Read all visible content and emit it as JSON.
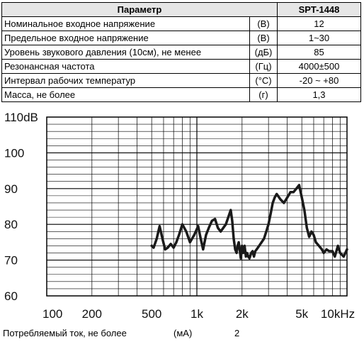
{
  "table": {
    "headers": [
      "Параметр",
      "SPT-1448"
    ],
    "rows": [
      {
        "param": "Номинальное входное напряжение",
        "unit": "(В)",
        "value": "12"
      },
      {
        "param": "Предельное входное напряжение",
        "unit": "(В)",
        "value": "1~30"
      },
      {
        "param": "Уровень звукового давления (10см), не менее",
        "unit": "(дБ)",
        "value": "85"
      },
      {
        "param": "Резонансная частота",
        "unit": "(Гц)",
        "value": "4000±500"
      },
      {
        "param": "Интервал рабочих температур",
        "unit": "(°С)",
        "value": "-20 ~ +80"
      },
      {
        "param": "Масса, не более",
        "unit": "(г)",
        "value": "1,3"
      }
    ]
  },
  "chart_data": {
    "type": "line",
    "x_scale": "log",
    "xlim": [
      100,
      10000
    ],
    "ylim": [
      60,
      110
    ],
    "x_tick_labels": [
      {
        "x": 100,
        "label": "100"
      },
      {
        "x": 200,
        "label": "200"
      },
      {
        "x": 500,
        "label": "500"
      },
      {
        "x": 1000,
        "label": "1k"
      },
      {
        "x": 2000,
        "label": "2k"
      },
      {
        "x": 5000,
        "label": "5k"
      },
      {
        "x": 10000,
        "label": "10kHz"
      }
    ],
    "y_tick_labels": [
      {
        "y": 60,
        "label": "60"
      },
      {
        "y": 70,
        "label": "70"
      },
      {
        "y": 80,
        "label": "80"
      },
      {
        "y": 90,
        "label": "90"
      },
      {
        "y": 100,
        "label": "100"
      },
      {
        "y": 110,
        "label": "110dB"
      }
    ],
    "grid": true,
    "series": [
      {
        "color": "#1a1a1a",
        "x": [
          500,
          515,
          540,
          565,
          590,
          615,
          640,
          670,
          700,
          730,
          760,
          800,
          850,
          900,
          960,
          1020,
          1060,
          1100,
          1150,
          1200,
          1260,
          1320,
          1380,
          1440,
          1500,
          1560,
          1620,
          1680,
          1720,
          1760,
          1800,
          1840,
          1870,
          1900,
          1930,
          1960,
          2000,
          2040,
          2080,
          2120,
          2160,
          2200,
          2240,
          2300,
          2350,
          2400,
          2450,
          2500,
          2600,
          2700,
          2800,
          2900,
          3000,
          3100,
          3200,
          3300,
          3400,
          3600,
          3800,
          4000,
          4200,
          4400,
          4600,
          4800,
          5000,
          5200,
          5400,
          5600,
          5800,
          6000,
          6200,
          6500,
          6800,
          7000,
          7300,
          7600,
          8000,
          8300,
          8700,
          9000,
          9500,
          10000
        ],
        "y": [
          74,
          73.5,
          76,
          79.5,
          76,
          73,
          73.5,
          74.5,
          73.5,
          75,
          77,
          80,
          78,
          75,
          77,
          79.5,
          76,
          73,
          77,
          79,
          81,
          81.5,
          79,
          78,
          79,
          80,
          82,
          84,
          81,
          76,
          73,
          72,
          74,
          75,
          73,
          70.5,
          74,
          72,
          74,
          71,
          72,
          71,
          70.5,
          72,
          72.5,
          71,
          72.5,
          73,
          74,
          75,
          76,
          78,
          80,
          83,
          86,
          87.5,
          88.5,
          87,
          86,
          87.5,
          89,
          89,
          90,
          91,
          87.5,
          84,
          79,
          76.5,
          78,
          77,
          75,
          74,
          73,
          72,
          73,
          72.5,
          72.5,
          71,
          74,
          72,
          71,
          73
        ]
      }
    ]
  },
  "footer": {
    "label": "Потребляемый ток, не более",
    "unit": "(мА)",
    "value": "2"
  }
}
